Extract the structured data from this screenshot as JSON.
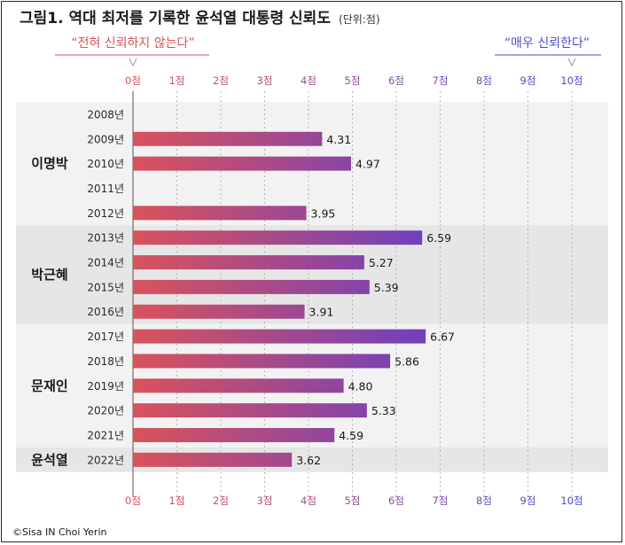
{
  "title": "그림1. 역대 최저를 기록한 윤석열 대통령 신뢰도",
  "unit": "(단위:점)",
  "annotation_low": "“전혀 신뢰하지 않는다”",
  "annotation_high": "“매우 신뢰한다”",
  "credit": "©Sisa IN Choi Yerin",
  "colors": {
    "low": "#d9535b",
    "high": "#6a3fc2",
    "band": "#e6e6e6",
    "band_light": "#f2f2f2",
    "tick_low": "#d9535b",
    "tick_high": "#4b4fc9"
  },
  "chart_data": {
    "type": "bar",
    "orientation": "horizontal",
    "title": "그림1. 역대 최저를 기록한 윤석열 대통령 신뢰도",
    "xlim": [
      0,
      10
    ],
    "x_ticks": [
      "0점",
      "1점",
      "2점",
      "3점",
      "4점",
      "5점",
      "6점",
      "7점",
      "8점",
      "9점",
      "10점"
    ],
    "grid": true,
    "groups": [
      {
        "president": "이명박",
        "rows": [
          {
            "year": "2008년",
            "value": null,
            "label": ""
          },
          {
            "year": "2009년",
            "value": 4.31,
            "label": "4.31"
          },
          {
            "year": "2010년",
            "value": 4.97,
            "label": "4.97"
          },
          {
            "year": "2011년",
            "value": null,
            "label": ""
          },
          {
            "year": "2012년",
            "value": 3.95,
            "label": "3.95"
          }
        ]
      },
      {
        "president": "박근혜",
        "rows": [
          {
            "year": "2013년",
            "value": 6.59,
            "label": "6.59"
          },
          {
            "year": "2014년",
            "value": 5.27,
            "label": "5.27"
          },
          {
            "year": "2015년",
            "value": 5.39,
            "label": "5.39"
          },
          {
            "year": "2016년",
            "value": 3.91,
            "label": "3.91"
          }
        ]
      },
      {
        "president": "문재인",
        "rows": [
          {
            "year": "2017년",
            "value": 6.67,
            "label": "6.67"
          },
          {
            "year": "2018년",
            "value": 5.86,
            "label": "5.86"
          },
          {
            "year": "2019년",
            "value": 4.8,
            "label": "4.80"
          },
          {
            "year": "2020년",
            "value": 5.33,
            "label": "5.33"
          },
          {
            "year": "2021년",
            "value": 4.59,
            "label": "4.59"
          }
        ]
      },
      {
        "president": "윤석열",
        "rows": [
          {
            "year": "2022년",
            "value": 3.62,
            "label": "3.62"
          }
        ]
      }
    ]
  }
}
